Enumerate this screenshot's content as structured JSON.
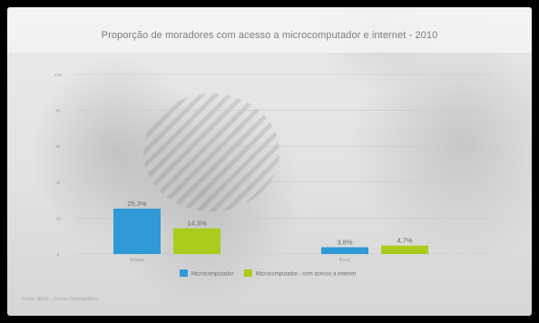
{
  "chart_data": {
    "type": "bar",
    "title": "Proporção de moradores com acesso a microcomputador e internet - 2010",
    "categories": [
      "Urbana",
      "Rural"
    ],
    "series": [
      {
        "name": "Microcomputador",
        "color": "#2f9ad6",
        "values": [
          25.3,
          3.8
        ],
        "labels": [
          "25,3%",
          "3,8%"
        ]
      },
      {
        "name": "Microcomputador - com acesso à internet",
        "color": "#a9cc1d",
        "values": [
          14.3,
          4.7
        ],
        "labels": [
          "14,3%",
          "4,7%"
        ]
      }
    ],
    "ylim": [
      0,
      100
    ],
    "yticks": [
      0,
      20,
      40,
      60,
      80,
      100
    ],
    "xlabel": "",
    "ylabel": "",
    "grid": true,
    "legend_position": "bottom",
    "source": "Fonte: IBGE - Censo Demográfico"
  }
}
